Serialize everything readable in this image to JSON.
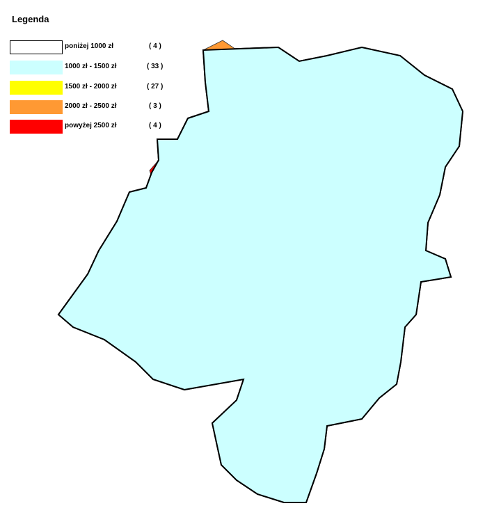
{
  "legend": {
    "title": "Legenda",
    "items": [
      {
        "label": "poniżej 1000 zł",
        "count": "( 4 )",
        "color": "#ffffff",
        "bordered": true
      },
      {
        "label": "1000 zł - 1500 zł",
        "count": "( 33 )",
        "color": "#ccffff",
        "bordered": false
      },
      {
        "label": "1500 zł - 2000 zł",
        "count": "( 27 )",
        "color": "#ffff00",
        "bordered": false
      },
      {
        "label": "2000 zł - 2500 zł",
        "count": "( 3 )",
        "color": "#ff9933",
        "bordered": false
      },
      {
        "label": "powyżej 2500 zł",
        "count": "( 4 )",
        "color": "#ff0000",
        "bordered": false
      }
    ]
  },
  "colors": {
    "below_1000": "#ffffff",
    "r1000_1500": "#ccffff",
    "r1500_2000": "#ffff00",
    "r2000_2500": "#ff9933",
    "above_2500": "#ff0000",
    "border": "#000000",
    "inner_border": "#333333"
  }
}
